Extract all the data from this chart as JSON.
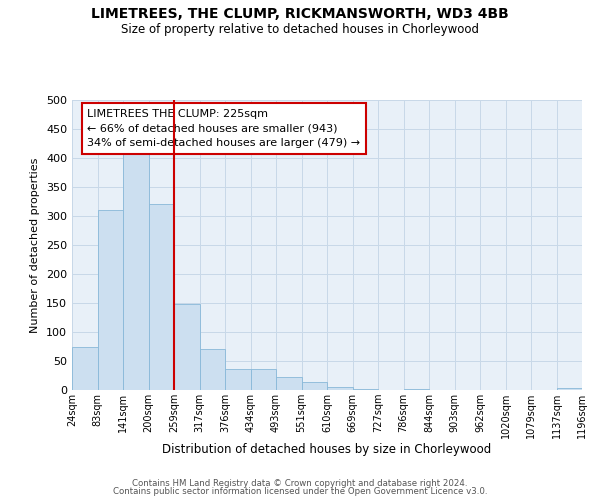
{
  "title": "LIMETREES, THE CLUMP, RICKMANSWORTH, WD3 4BB",
  "subtitle": "Size of property relative to detached houses in Chorleywood",
  "xlabel": "Distribution of detached houses by size in Chorleywood",
  "ylabel": "Number of detached properties",
  "bar_values": [
    75,
    311,
    407,
    320,
    148,
    70,
    37,
    37,
    22,
    13,
    6,
    1,
    0,
    1,
    0,
    0,
    0,
    0,
    0,
    3
  ],
  "bin_labels": [
    "24sqm",
    "83sqm",
    "141sqm",
    "200sqm",
    "259sqm",
    "317sqm",
    "376sqm",
    "434sqm",
    "493sqm",
    "551sqm",
    "610sqm",
    "669sqm",
    "727sqm",
    "786sqm",
    "844sqm",
    "903sqm",
    "962sqm",
    "1020sqm",
    "1079sqm",
    "1137sqm",
    "1196sqm"
  ],
  "bar_color": "#ccdff0",
  "bar_edge_color": "#88b8d8",
  "grid_color": "#c8d8e8",
  "vline_color": "#cc0000",
  "vline_x": 3.5,
  "annotation_title": "LIMETREES THE CLUMP: 225sqm",
  "annotation_line1": "← 66% of detached houses are smaller (943)",
  "annotation_line2": "34% of semi-detached houses are larger (479) →",
  "annotation_box_edgecolor": "#cc0000",
  "ylim": [
    0,
    500
  ],
  "yticks": [
    0,
    50,
    100,
    150,
    200,
    250,
    300,
    350,
    400,
    450,
    500
  ],
  "footer1": "Contains HM Land Registry data © Crown copyright and database right 2024.",
  "footer2": "Contains public sector information licensed under the Open Government Licence v3.0.",
  "bg_color": "#e8f0f8"
}
